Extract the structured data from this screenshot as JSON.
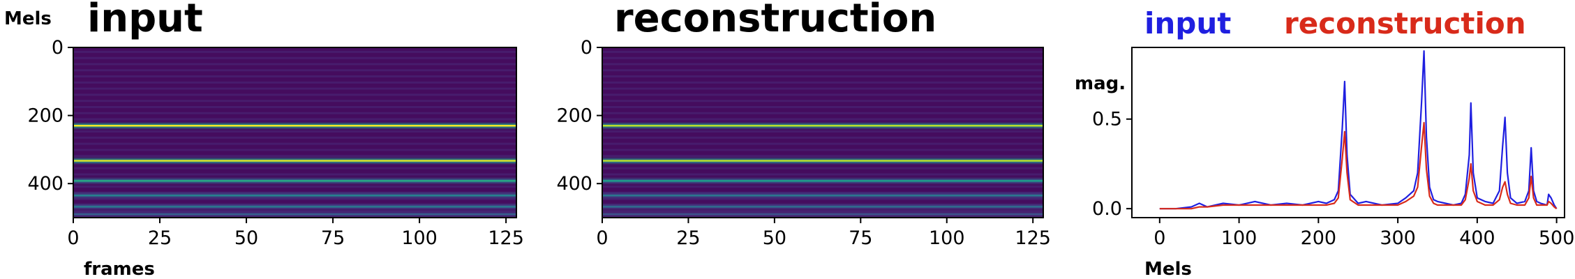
{
  "chart_data": [
    {
      "type": "heatmap",
      "title": "input",
      "xlabel": "frames",
      "ylabel": "Mels",
      "xlim": [
        0,
        128
      ],
      "ylim": [
        500,
        0
      ],
      "xticks": [
        0,
        25,
        50,
        75,
        100,
        125
      ],
      "yticks": [
        0,
        200,
        400
      ],
      "colormap": "viridis",
      "bright_bands_mel": [
        230,
        333,
        392,
        435,
        468,
        490
      ],
      "band_intensity": [
        1.0,
        0.95,
        0.6,
        0.45,
        0.4,
        0.3
      ]
    },
    {
      "type": "heatmap",
      "title": "reconstruction",
      "xlabel": "",
      "ylabel": "",
      "xlim": [
        0,
        128
      ],
      "ylim": [
        500,
        0
      ],
      "xticks": [
        0,
        25,
        50,
        75,
        100,
        125
      ],
      "yticks": [
        0,
        200,
        400
      ],
      "colormap": "viridis",
      "bright_bands_mel": [
        230,
        333,
        392,
        435,
        468,
        490
      ],
      "band_intensity": [
        0.9,
        0.9,
        0.55,
        0.4,
        0.35,
        0.25
      ]
    },
    {
      "type": "line",
      "xlabel": "Mels",
      "ylabel": "mag.",
      "xlim": [
        -35,
        510
      ],
      "ylim": [
        -0.05,
        0.9
      ],
      "xticks": [
        0,
        100,
        200,
        300,
        400,
        500
      ],
      "yticks": [
        0.0,
        0.5
      ],
      "ytick_labels": [
        "0.0",
        "0.5"
      ],
      "legend_placement": "top",
      "series": [
        {
          "name": "input",
          "color": "#1f1fe0",
          "x": [
            0,
            20,
            40,
            50,
            60,
            80,
            100,
            120,
            140,
            160,
            180,
            200,
            210,
            220,
            225,
            230,
            233,
            236,
            240,
            250,
            260,
            280,
            300,
            310,
            320,
            325,
            330,
            333,
            336,
            340,
            345,
            350,
            360,
            370,
            380,
            385,
            390,
            392,
            395,
            400,
            410,
            420,
            428,
            432,
            435,
            438,
            442,
            450,
            460,
            465,
            468,
            471,
            475,
            480,
            488,
            490,
            493,
            497,
            500
          ],
          "y": [
            0.0,
            0.0,
            0.01,
            0.03,
            0.01,
            0.03,
            0.02,
            0.04,
            0.02,
            0.03,
            0.02,
            0.04,
            0.03,
            0.05,
            0.1,
            0.45,
            0.71,
            0.3,
            0.08,
            0.03,
            0.04,
            0.02,
            0.03,
            0.06,
            0.1,
            0.2,
            0.6,
            0.88,
            0.4,
            0.12,
            0.05,
            0.04,
            0.03,
            0.02,
            0.03,
            0.08,
            0.3,
            0.59,
            0.2,
            0.06,
            0.04,
            0.03,
            0.1,
            0.35,
            0.51,
            0.2,
            0.06,
            0.03,
            0.04,
            0.1,
            0.34,
            0.1,
            0.04,
            0.03,
            0.02,
            0.08,
            0.06,
            0.02,
            0.0
          ]
        },
        {
          "name": "reconstruction",
          "color": "#d82a1a",
          "x": [
            0,
            20,
            40,
            50,
            60,
            80,
            100,
            120,
            140,
            160,
            180,
            200,
            210,
            220,
            225,
            230,
            233,
            236,
            240,
            250,
            260,
            280,
            300,
            310,
            320,
            325,
            330,
            333,
            336,
            340,
            345,
            350,
            360,
            370,
            380,
            385,
            390,
            392,
            395,
            400,
            410,
            420,
            428,
            432,
            435,
            438,
            442,
            450,
            460,
            465,
            468,
            471,
            475,
            480,
            488,
            490,
            493,
            497,
            500
          ],
          "y": [
            0.0,
            0.0,
            0.0,
            0.01,
            0.01,
            0.02,
            0.02,
            0.02,
            0.02,
            0.02,
            0.02,
            0.02,
            0.02,
            0.03,
            0.06,
            0.28,
            0.43,
            0.2,
            0.05,
            0.02,
            0.02,
            0.02,
            0.02,
            0.04,
            0.07,
            0.12,
            0.35,
            0.48,
            0.22,
            0.07,
            0.03,
            0.02,
            0.02,
            0.02,
            0.02,
            0.05,
            0.17,
            0.25,
            0.1,
            0.04,
            0.02,
            0.02,
            0.05,
            0.12,
            0.15,
            0.08,
            0.03,
            0.02,
            0.02,
            0.06,
            0.18,
            0.06,
            0.02,
            0.02,
            0.02,
            0.04,
            0.03,
            0.01,
            0.0
          ]
        }
      ]
    }
  ]
}
